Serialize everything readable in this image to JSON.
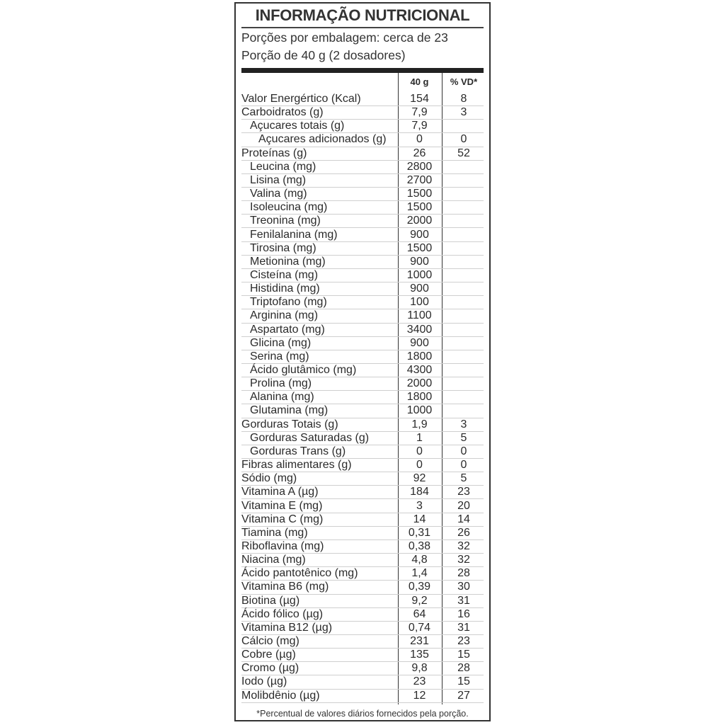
{
  "title": "INFORMAÇÃO NUTRICIONAL",
  "servings_per_package": "Porções por embalagem: cerca de 23",
  "serving_size": "Porção de 40 g (2 dosadores)",
  "columns": {
    "amount": "40 g",
    "dv": "% VD*"
  },
  "rows": [
    {
      "label": "Valor Energértico (Kcal)",
      "amount": "154",
      "dv": "8",
      "indent": 0
    },
    {
      "label": "Carboidratos (g)",
      "amount": "7,9",
      "dv": "3",
      "indent": 0
    },
    {
      "label": "Açucares totais (g)",
      "amount": "7,9",
      "dv": "",
      "indent": 1
    },
    {
      "label": "Açucares adicionados (g)",
      "amount": "0",
      "dv": "0",
      "indent": 2
    },
    {
      "label": "Proteínas (g)",
      "amount": "26",
      "dv": "52",
      "indent": 0
    },
    {
      "label": "Leucina (mg)",
      "amount": "2800",
      "dv": "",
      "indent": 1
    },
    {
      "label": "Lisina (mg)",
      "amount": "2700",
      "dv": "",
      "indent": 1
    },
    {
      "label": "Valina (mg)",
      "amount": "1500",
      "dv": "",
      "indent": 1
    },
    {
      "label": "Isoleucina (mg)",
      "amount": "1500",
      "dv": "",
      "indent": 1
    },
    {
      "label": "Treonina (mg)",
      "amount": "2000",
      "dv": "",
      "indent": 1
    },
    {
      "label": "Fenilalanina (mg)",
      "amount": "900",
      "dv": "",
      "indent": 1
    },
    {
      "label": "Tirosina (mg)",
      "amount": "1500",
      "dv": "",
      "indent": 1
    },
    {
      "label": "Metionina (mg)",
      "amount": "900",
      "dv": "",
      "indent": 1
    },
    {
      "label": "Cisteína (mg)",
      "amount": "1000",
      "dv": "",
      "indent": 1
    },
    {
      "label": "Histidina (mg)",
      "amount": "900",
      "dv": "",
      "indent": 1
    },
    {
      "label": "Triptofano (mg)",
      "amount": "100",
      "dv": "",
      "indent": 1
    },
    {
      "label": "Arginina (mg)",
      "amount": "1100",
      "dv": "",
      "indent": 1
    },
    {
      "label": "Aspartato (mg)",
      "amount": "3400",
      "dv": "",
      "indent": 1
    },
    {
      "label": "Glicina (mg)",
      "amount": "900",
      "dv": "",
      "indent": 1
    },
    {
      "label": "Serina (mg)",
      "amount": "1800",
      "dv": "",
      "indent": 1
    },
    {
      "label": "Ácido glutâmico (mg)",
      "amount": "4300",
      "dv": "",
      "indent": 1
    },
    {
      "label": "Prolina (mg)",
      "amount": "2000",
      "dv": "",
      "indent": 1
    },
    {
      "label": "Alanina (mg)",
      "amount": "1800",
      "dv": "",
      "indent": 1
    },
    {
      "label": "Glutamina (mg)",
      "amount": "1000",
      "dv": "",
      "indent": 1
    },
    {
      "label": "Gorduras Totais (g)",
      "amount": "1,9",
      "dv": "3",
      "indent": 0
    },
    {
      "label": "Gorduras Saturadas (g)",
      "amount": "1",
      "dv": "5",
      "indent": 1
    },
    {
      "label": "Gorduras Trans (g)",
      "amount": "0",
      "dv": "0",
      "indent": 1
    },
    {
      "label": "Fibras alimentares (g)",
      "amount": "0",
      "dv": "0",
      "indent": 0
    },
    {
      "label": "Sódio (mg)",
      "amount": "92",
      "dv": "5",
      "indent": 0
    },
    {
      "label": "Vitamina A  (µg)",
      "amount": "184",
      "dv": "23",
      "indent": 0
    },
    {
      "label": "Vitamina E (mg)",
      "amount": "3",
      "dv": "20",
      "indent": 0
    },
    {
      "label": "Vitamina C (mg)",
      "amount": "14",
      "dv": "14",
      "indent": 0
    },
    {
      "label": "Tiamina (mg)",
      "amount": "0,31",
      "dv": "26",
      "indent": 0
    },
    {
      "label": "Riboflavina (mg)",
      "amount": "0,38",
      "dv": "32",
      "indent": 0
    },
    {
      "label": "Niacina (mg)",
      "amount": "4,8",
      "dv": "32",
      "indent": 0
    },
    {
      "label": "Ácido pantotênico (mg)",
      "amount": "1,4",
      "dv": "28",
      "indent": 0
    },
    {
      "label": "Vitamina B6 (mg)",
      "amount": "0,39",
      "dv": "30",
      "indent": 0
    },
    {
      "label": "Biotina (µg)",
      "amount": "9,2",
      "dv": "31",
      "indent": 0
    },
    {
      "label": "Ácido fólico (µg)",
      "amount": "64",
      "dv": "16",
      "indent": 0
    },
    {
      "label": "Vitamina B12 (µg)",
      "amount": "0,74",
      "dv": "31",
      "indent": 0
    },
    {
      "label": "Cálcio (mg)",
      "amount": "231",
      "dv": "23",
      "indent": 0
    },
    {
      "label": "Cobre (µg)",
      "amount": "135",
      "dv": "15",
      "indent": 0
    },
    {
      "label": "Cromo (µg)",
      "amount": "9,8",
      "dv": "28",
      "indent": 0
    },
    {
      "label": "Iodo (µg)",
      "amount": "23",
      "dv": "15",
      "indent": 0
    },
    {
      "label": "Molibdênio (µg)",
      "amount": "12",
      "dv": "27",
      "indent": 0
    }
  ],
  "footnote": "*Percentual de valores diários fornecidos pela porção."
}
